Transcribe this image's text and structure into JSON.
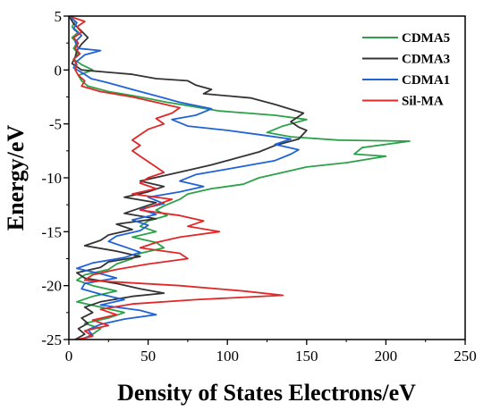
{
  "chart_data": {
    "type": "line",
    "title": "",
    "xlabel": "Density of States Electrons/eV",
    "ylabel": "Energy/eV",
    "xlim": [
      0,
      250
    ],
    "ylim": [
      -25,
      5
    ],
    "x_ticks": [
      "0",
      "50",
      "100",
      "150",
      "200",
      "250"
    ],
    "y_ticks": [
      "5",
      "0",
      "-5",
      "-10",
      "-15",
      "-20",
      "-25"
    ],
    "grid": false,
    "legend_position": "top-right",
    "series": [
      {
        "name": "CDMA5",
        "color": "#2ca14a",
        "points": [
          [
            0,
            5
          ],
          [
            4,
            4.5
          ],
          [
            2,
            4
          ],
          [
            6,
            3.5
          ],
          [
            2,
            3
          ],
          [
            5,
            2.5
          ],
          [
            3,
            2
          ],
          [
            6,
            1.5
          ],
          [
            3,
            1
          ],
          [
            8,
            0.5
          ],
          [
            15,
            0
          ],
          [
            6,
            -0.5
          ],
          [
            8,
            -1
          ],
          [
            12,
            -1.5
          ],
          [
            25,
            -2
          ],
          [
            45,
            -2.5
          ],
          [
            62,
            -3
          ],
          [
            75,
            -3.3
          ],
          [
            95,
            -3.8
          ],
          [
            130,
            -4.2
          ],
          [
            150,
            -4.6
          ],
          [
            135,
            -5.2
          ],
          [
            125,
            -5.8
          ],
          [
            140,
            -6.2
          ],
          [
            170,
            -6.5
          ],
          [
            215,
            -6.6
          ],
          [
            185,
            -7.2
          ],
          [
            180,
            -7.8
          ],
          [
            200,
            -8
          ],
          [
            175,
            -8.6
          ],
          [
            150,
            -9
          ],
          [
            135,
            -9.5
          ],
          [
            120,
            -10
          ],
          [
            110,
            -10.6
          ],
          [
            90,
            -11
          ],
          [
            75,
            -11.5
          ],
          [
            70,
            -12
          ],
          [
            60,
            -12.6
          ],
          [
            55,
            -13
          ],
          [
            62,
            -13.5
          ],
          [
            50,
            -14
          ],
          [
            45,
            -14.5
          ],
          [
            55,
            -15
          ],
          [
            40,
            -15.5
          ],
          [
            55,
            -16
          ],
          [
            60,
            -16.5
          ],
          [
            45,
            -17
          ],
          [
            40,
            -17.5
          ],
          [
            30,
            -18
          ],
          [
            25,
            -18.5
          ],
          [
            10,
            -19
          ],
          [
            5,
            -19.5
          ],
          [
            15,
            -20
          ],
          [
            30,
            -20.5
          ],
          [
            15,
            -21
          ],
          [
            5,
            -21.5
          ],
          [
            20,
            -22
          ],
          [
            35,
            -22.5
          ],
          [
            25,
            -23
          ],
          [
            10,
            -23.5
          ],
          [
            20,
            -24
          ],
          [
            15,
            -24.5
          ],
          [
            8,
            -25
          ]
        ]
      },
      {
        "name": "CDMA3",
        "color": "#333333",
        "points": [
          [
            0,
            5
          ],
          [
            3,
            4.3
          ],
          [
            8,
            3.6
          ],
          [
            12,
            3
          ],
          [
            8,
            2.4
          ],
          [
            5,
            1.8
          ],
          [
            4,
            1.2
          ],
          [
            2,
            0.6
          ],
          [
            8,
            0
          ],
          [
            40,
            -0.4
          ],
          [
            55,
            -0.8
          ],
          [
            75,
            -1
          ],
          [
            80,
            -1.4
          ],
          [
            90,
            -1.8
          ],
          [
            85,
            -2.2
          ],
          [
            115,
            -2.6
          ],
          [
            130,
            -3.2
          ],
          [
            148,
            -4
          ],
          [
            140,
            -4.8
          ],
          [
            145,
            -5.3
          ],
          [
            150,
            -5.6
          ],
          [
            145,
            -6.4
          ],
          [
            130,
            -7
          ],
          [
            120,
            -7.6
          ],
          [
            105,
            -8.2
          ],
          [
            90,
            -8.8
          ],
          [
            75,
            -9.3
          ],
          [
            60,
            -9.8
          ],
          [
            45,
            -10.3
          ],
          [
            60,
            -10.8
          ],
          [
            50,
            -11.3
          ],
          [
            35,
            -11.8
          ],
          [
            55,
            -12.3
          ],
          [
            45,
            -12.8
          ],
          [
            35,
            -13.3
          ],
          [
            55,
            -13.8
          ],
          [
            30,
            -14.3
          ],
          [
            40,
            -14.8
          ],
          [
            25,
            -15.3
          ],
          [
            20,
            -15.8
          ],
          [
            10,
            -16.3
          ],
          [
            30,
            -16.8
          ],
          [
            45,
            -17.3
          ],
          [
            25,
            -17.8
          ],
          [
            20,
            -18.3
          ],
          [
            5,
            -18.8
          ],
          [
            10,
            -19.3
          ],
          [
            30,
            -19.8
          ],
          [
            45,
            -20.3
          ],
          [
            60,
            -20.7
          ],
          [
            40,
            -21
          ],
          [
            20,
            -21.5
          ],
          [
            10,
            -22
          ],
          [
            15,
            -22.5
          ],
          [
            8,
            -23
          ],
          [
            12,
            -23.5
          ],
          [
            6,
            -24
          ],
          [
            10,
            -24.5
          ],
          [
            4,
            -25
          ]
        ]
      },
      {
        "name": "CDMA1",
        "color": "#1f63d6",
        "points": [
          [
            0,
            5
          ],
          [
            5,
            4.4
          ],
          [
            3,
            3.8
          ],
          [
            8,
            3.2
          ],
          [
            4,
            2.6
          ],
          [
            6,
            2
          ],
          [
            20,
            1.8
          ],
          [
            10,
            1.4
          ],
          [
            5,
            0.8
          ],
          [
            3,
            0.2
          ],
          [
            10,
            -0.4
          ],
          [
            14,
            -0.8
          ],
          [
            25,
            -1.2
          ],
          [
            40,
            -1.8
          ],
          [
            55,
            -2.4
          ],
          [
            70,
            -3
          ],
          [
            90,
            -3.6
          ],
          [
            80,
            -4.2
          ],
          [
            65,
            -4.6
          ],
          [
            75,
            -5.2
          ],
          [
            100,
            -5.6
          ],
          [
            120,
            -6
          ],
          [
            140,
            -6.4
          ],
          [
            130,
            -6.9
          ],
          [
            145,
            -7.4
          ],
          [
            140,
            -7.8
          ],
          [
            130,
            -8.4
          ],
          [
            115,
            -8.8
          ],
          [
            100,
            -9.2
          ],
          [
            80,
            -9.7
          ],
          [
            70,
            -10.3
          ],
          [
            85,
            -10.8
          ],
          [
            70,
            -11.3
          ],
          [
            50,
            -11.8
          ],
          [
            60,
            -12.4
          ],
          [
            45,
            -12.9
          ],
          [
            55,
            -13.4
          ],
          [
            40,
            -13.9
          ],
          [
            50,
            -14.4
          ],
          [
            45,
            -14.9
          ],
          [
            30,
            -15.4
          ],
          [
            25,
            -15.9
          ],
          [
            35,
            -16.4
          ],
          [
            45,
            -16.9
          ],
          [
            35,
            -17.4
          ],
          [
            15,
            -17.9
          ],
          [
            5,
            -18.4
          ],
          [
            20,
            -18.9
          ],
          [
            30,
            -19.3
          ],
          [
            10,
            -19.8
          ],
          [
            8,
            -20.3
          ],
          [
            20,
            -20.8
          ],
          [
            35,
            -21.3
          ],
          [
            20,
            -21.8
          ],
          [
            45,
            -22.3
          ],
          [
            55,
            -22.7
          ],
          [
            35,
            -23.1
          ],
          [
            20,
            -23.6
          ],
          [
            12,
            -24.1
          ],
          [
            15,
            -24.6
          ],
          [
            8,
            -25
          ]
        ]
      },
      {
        "name": "Sil-MA",
        "color": "#e02828",
        "points": [
          [
            0,
            5
          ],
          [
            10,
            4.5
          ],
          [
            5,
            4
          ],
          [
            8,
            3.5
          ],
          [
            3,
            3
          ],
          [
            6,
            2.5
          ],
          [
            4,
            2
          ],
          [
            7,
            1.5
          ],
          [
            3,
            1
          ],
          [
            5,
            0.5
          ],
          [
            4,
            0
          ],
          [
            6,
            -0.5
          ],
          [
            10,
            -1
          ],
          [
            8,
            -1.5
          ],
          [
            20,
            -2
          ],
          [
            40,
            -2.5
          ],
          [
            55,
            -3
          ],
          [
            70,
            -3.5
          ],
          [
            65,
            -4
          ],
          [
            55,
            -4.5
          ],
          [
            60,
            -5
          ],
          [
            50,
            -5.5
          ],
          [
            45,
            -6
          ],
          [
            40,
            -6.5
          ],
          [
            45,
            -7
          ],
          [
            40,
            -7.5
          ],
          [
            45,
            -8
          ],
          [
            50,
            -8.5
          ],
          [
            55,
            -9
          ],
          [
            60,
            -9.5
          ],
          [
            50,
            -10
          ],
          [
            45,
            -10.5
          ],
          [
            55,
            -11
          ],
          [
            40,
            -11.5
          ],
          [
            65,
            -12
          ],
          [
            55,
            -12.5
          ],
          [
            45,
            -13
          ],
          [
            70,
            -13.5
          ],
          [
            85,
            -14
          ],
          [
            75,
            -14.5
          ],
          [
            95,
            -15
          ],
          [
            70,
            -15.5
          ],
          [
            55,
            -16
          ],
          [
            45,
            -16.5
          ],
          [
            70,
            -17
          ],
          [
            75,
            -17.5
          ],
          [
            50,
            -18
          ],
          [
            30,
            -18.5
          ],
          [
            15,
            -19
          ],
          [
            10,
            -19.5
          ],
          [
            70,
            -20
          ],
          [
            110,
            -20.5
          ],
          [
            135,
            -20.9
          ],
          [
            80,
            -21.3
          ],
          [
            40,
            -21.7
          ],
          [
            20,
            -22.2
          ],
          [
            30,
            -22.7
          ],
          [
            15,
            -23.2
          ],
          [
            25,
            -23.7
          ],
          [
            10,
            -24.2
          ],
          [
            15,
            -24.7
          ],
          [
            5,
            -25
          ]
        ]
      }
    ]
  }
}
